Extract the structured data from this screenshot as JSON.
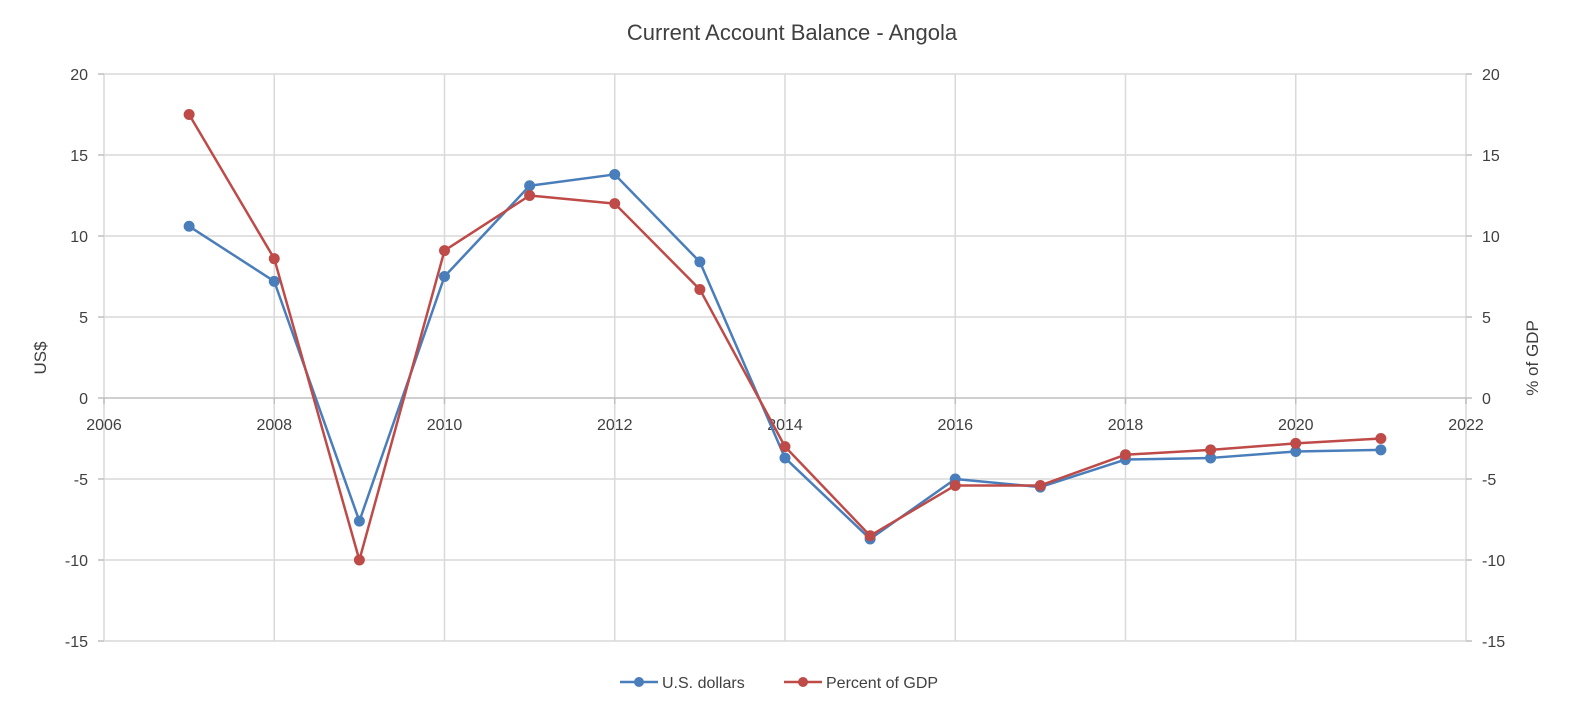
{
  "chart_data": {
    "type": "line",
    "title": "Current Account Balance - Angola",
    "xlabel": "",
    "ylabel": "US$",
    "y2label": "% of GDP",
    "xlim": [
      2006,
      2022
    ],
    "ylim": [
      -15,
      20
    ],
    "y2lim": [
      -15,
      20
    ],
    "x_ticks": [
      2006,
      2008,
      2010,
      2012,
      2014,
      2016,
      2018,
      2020,
      2022
    ],
    "y_ticks": [
      20,
      15,
      10,
      5,
      0,
      -5,
      -10,
      -15
    ],
    "grid": true,
    "legend_position": "bottom",
    "colors": {
      "usd": "#4a7ebb",
      "gdp": "#be4b48",
      "grid": "#d9d9d9",
      "text": "#404040"
    },
    "series": [
      {
        "name": "U.S. dollars",
        "axis": "left",
        "x": [
          2007,
          2008,
          2009,
          2010,
          2011,
          2012,
          2013,
          2014,
          2015,
          2016,
          2017,
          2018,
          2019,
          2020,
          2021
        ],
        "values": [
          10.6,
          7.2,
          -7.6,
          7.5,
          13.1,
          13.8,
          8.4,
          -3.7,
          -8.7,
          -5.0,
          -5.5,
          -3.8,
          -3.7,
          -3.3,
          -3.2
        ]
      },
      {
        "name": "Percent of GDP",
        "axis": "right",
        "x": [
          2007,
          2008,
          2009,
          2010,
          2011,
          2012,
          2013,
          2014,
          2015,
          2016,
          2017,
          2018,
          2019,
          2020,
          2021
        ],
        "values": [
          17.5,
          8.6,
          -10.0,
          9.1,
          12.5,
          12.0,
          6.7,
          -3.0,
          -8.5,
          -5.4,
          -5.4,
          -3.5,
          -3.2,
          -2.8,
          -2.5
        ]
      }
    ]
  }
}
